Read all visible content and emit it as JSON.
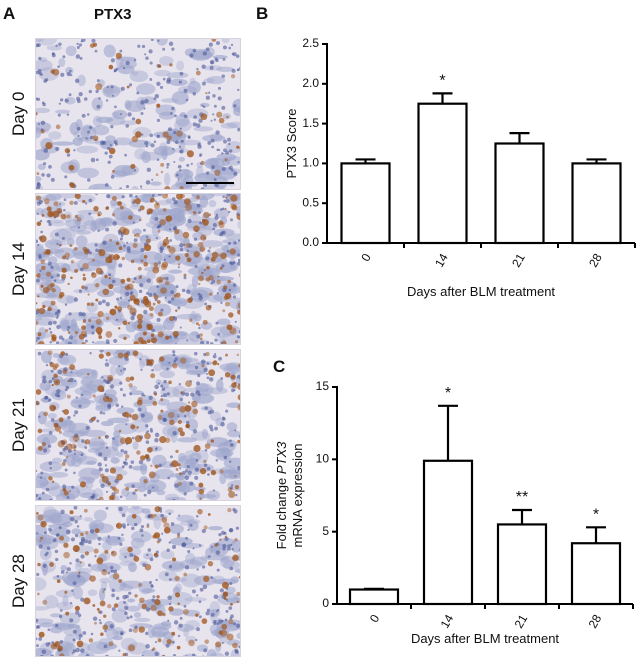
{
  "panel_a": {
    "letter": "A",
    "title": "PTX3",
    "rows": [
      {
        "label": "Day 0",
        "stain_density": 0.15
      },
      {
        "label": "Day 14",
        "stain_density": 0.85
      },
      {
        "label": "Day 21",
        "stain_density": 0.5
      },
      {
        "label": "Day 28",
        "stain_density": 0.4
      }
    ],
    "colors": {
      "background": "#e8e4ee",
      "tissue": "#9ea6cc",
      "nuclei": "#4d5a9a",
      "stain": "#a0561e"
    }
  },
  "chart_data": [
    {
      "panel": "B",
      "type": "bar",
      "title": "",
      "categories": [
        "0",
        "14",
        "21",
        "28"
      ],
      "values": [
        1.0,
        1.75,
        1.25,
        1.0
      ],
      "error": [
        0.05,
        0.13,
        0.13,
        0.05
      ],
      "significance": [
        "",
        "*",
        "",
        ""
      ],
      "ylabel": "PTX3 Score",
      "xlabel": "Days after BLM treatment",
      "ylim": [
        0,
        2.5
      ],
      "yticks": [
        "0.0",
        "0.5",
        "1.0",
        "1.5",
        "2.0",
        "2.5"
      ],
      "grid": false,
      "bar_fill": "#ffffff",
      "bar_stroke": "#000000"
    },
    {
      "panel": "C",
      "type": "bar",
      "title": "",
      "categories": [
        "0",
        "14",
        "21",
        "28"
      ],
      "values": [
        1.0,
        9.9,
        5.5,
        4.2
      ],
      "error": [
        0.05,
        3.8,
        1.0,
        1.1
      ],
      "significance": [
        "",
        "*",
        "**",
        "*"
      ],
      "ylabel_line1": "Fold change PTX3",
      "ylabel_line1_prefix": "Fold change ",
      "ylabel_line1_italic": "PTX3",
      "ylabel_line2": "mRNA expression",
      "xlabel": "Days after BLM treatment",
      "ylim": [
        0,
        15
      ],
      "yticks": [
        "0",
        "5",
        "10",
        "15"
      ],
      "grid": false,
      "bar_fill": "#ffffff",
      "bar_stroke": "#000000"
    }
  ]
}
